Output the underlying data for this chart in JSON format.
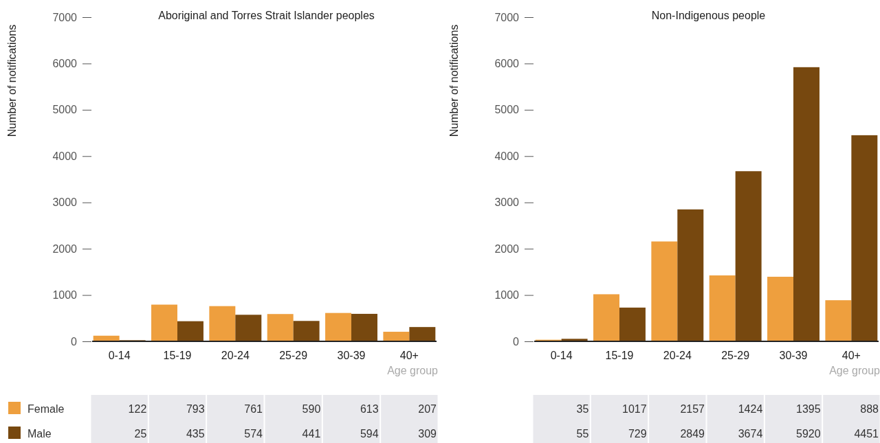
{
  "chart_data": [
    {
      "type": "bar",
      "title": "Aboriginal and Torres Strait Islander peoples",
      "xlabel": "Age group",
      "ylabel": "Number of notifications",
      "categories": [
        "0-14",
        "15-19",
        "20-24",
        "25-29",
        "30-39",
        "40+"
      ],
      "series": [
        {
          "name": "Female",
          "color": "#ee9f3e",
          "values": [
            122,
            793,
            761,
            590,
            613,
            207
          ]
        },
        {
          "name": "Male",
          "color": "#77480f",
          "values": [
            25,
            435,
            574,
            441,
            594,
            309
          ]
        }
      ],
      "ylim": [
        0,
        7000
      ],
      "yticks": [
        0,
        1000,
        2000,
        3000,
        4000,
        5000,
        6000,
        7000
      ],
      "data_labels": true,
      "legend": "bottom"
    },
    {
      "type": "bar",
      "title": "Non-Indigenous people",
      "xlabel": "Age group",
      "ylabel": "Number of notifications",
      "categories": [
        "0-14",
        "15-19",
        "20-24",
        "25-29",
        "30-39",
        "40+"
      ],
      "series": [
        {
          "color": "#ee9f3e",
          "values": [
            35,
            1017,
            2157,
            1424,
            1395,
            888
          ]
        },
        {
          "color": "#77480f",
          "values": [
            55,
            729,
            2849,
            3674,
            5920,
            4451
          ]
        }
      ],
      "ylim": [
        0,
        7000
      ],
      "yticks": [
        0,
        1000,
        2000,
        3000,
        4000,
        5000,
        6000,
        7000
      ],
      "data_labels": true
    }
  ]
}
